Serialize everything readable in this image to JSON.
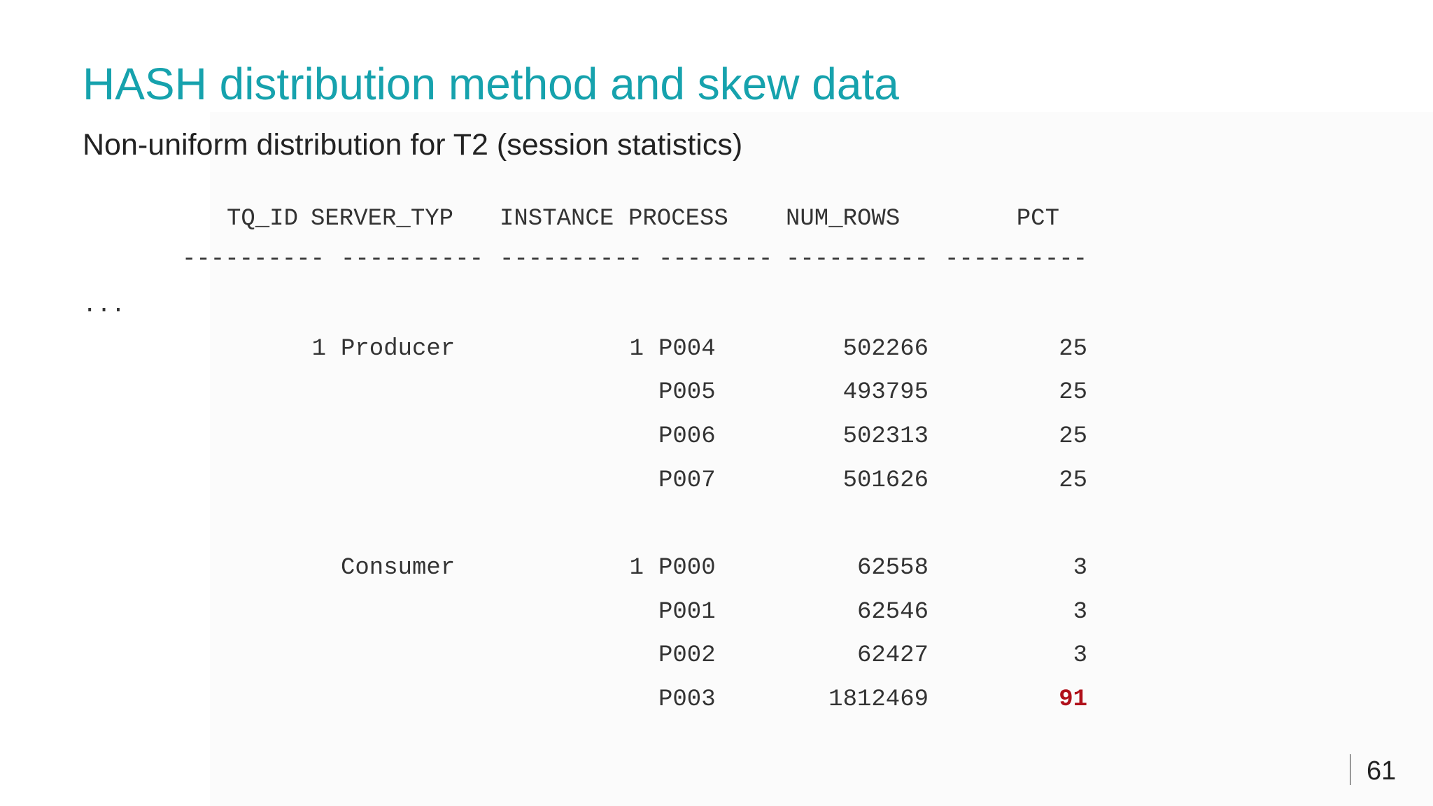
{
  "slide": {
    "title": "HASH distribution method and skew data",
    "subtitle": "Non-uniform distribution for T2 (session statistics)",
    "page_number": "61"
  },
  "table": {
    "headers": {
      "tq_id": "TQ_ID",
      "server_typ": "SERVER_TYP",
      "instance": "INSTANCE",
      "process": "PROCESS",
      "num_rows": "NUM_ROWS",
      "pct": "PCT"
    },
    "separators": {
      "tq_id": "----------",
      "server_typ": "----------",
      "instance": "----------",
      "process": "--------",
      "num_rows": "----------",
      "pct": "----------"
    },
    "ellipsis": "...",
    "rows": [
      {
        "tq_id": "1",
        "server_typ": "Producer",
        "instance": "1",
        "process": "P004",
        "num_rows": "502266",
        "pct": "25"
      },
      {
        "tq_id": "",
        "server_typ": "",
        "instance": "",
        "process": "P005",
        "num_rows": "493795",
        "pct": "25"
      },
      {
        "tq_id": "",
        "server_typ": "",
        "instance": "",
        "process": "P006",
        "num_rows": "502313",
        "pct": "25"
      },
      {
        "tq_id": "",
        "server_typ": "",
        "instance": "",
        "process": "P007",
        "num_rows": "501626",
        "pct": "25"
      },
      {
        "tq_id": "",
        "server_typ": "Consumer",
        "instance": "1",
        "process": "P000",
        "num_rows": "62558",
        "pct": "3"
      },
      {
        "tq_id": "",
        "server_typ": "",
        "instance": "",
        "process": "P001",
        "num_rows": "62546",
        "pct": "3"
      },
      {
        "tq_id": "",
        "server_typ": "",
        "instance": "",
        "process": "P002",
        "num_rows": "62427",
        "pct": "3"
      },
      {
        "tq_id": "",
        "server_typ": "",
        "instance": "",
        "process": "P003",
        "num_rows": "1812469",
        "pct": "91"
      }
    ],
    "highlight_color": "#b0101a"
  }
}
